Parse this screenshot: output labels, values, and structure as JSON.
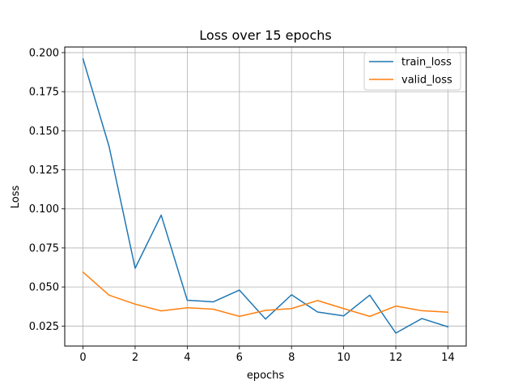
{
  "chart_data": {
    "type": "line",
    "title": "Loss over 15 epochs",
    "xlabel": "epochs",
    "ylabel": "Loss",
    "x": [
      0,
      1,
      2,
      3,
      4,
      5,
      6,
      7,
      8,
      9,
      10,
      11,
      12,
      13,
      14
    ],
    "xlim": [
      -0.7,
      14.7
    ],
    "ylim": [
      0.0122,
      0.2036
    ],
    "xticks": [
      0,
      2,
      4,
      6,
      8,
      10,
      12,
      14
    ],
    "yticks": [
      0.025,
      0.05,
      0.075,
      0.1,
      0.125,
      0.15,
      0.175,
      0.2
    ],
    "xtick_labels": [
      "0",
      "2",
      "4",
      "6",
      "8",
      "10",
      "12",
      "14"
    ],
    "ytick_labels": [
      "0.025",
      "0.050",
      "0.075",
      "0.100",
      "0.125",
      "0.150",
      "0.175",
      "0.200"
    ],
    "grid": true,
    "legend_position": "top-right",
    "series": [
      {
        "name": "train_loss",
        "color": "#1f77b4",
        "values": [
          0.196,
          0.14,
          0.062,
          0.096,
          0.0415,
          0.0405,
          0.048,
          0.0295,
          0.045,
          0.034,
          0.0315,
          0.0448,
          0.0205,
          0.0298,
          0.0245
        ]
      },
      {
        "name": "valid_loss",
        "color": "#ff7f0e",
        "values": [
          0.0595,
          0.0448,
          0.039,
          0.0347,
          0.0367,
          0.0358,
          0.0312,
          0.035,
          0.0362,
          0.0413,
          0.0362,
          0.0312,
          0.0378,
          0.0348,
          0.0339
        ]
      }
    ]
  }
}
